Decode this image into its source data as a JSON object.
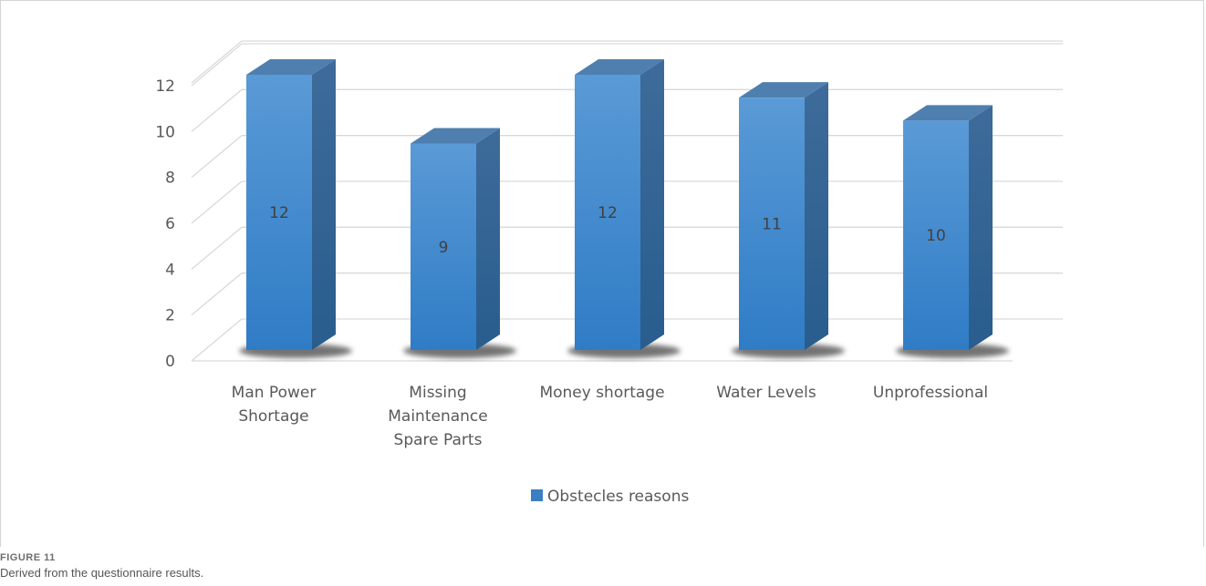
{
  "chart_data": {
    "type": "bar",
    "style": "3d-column",
    "categories": [
      [
        "Man Power",
        "Shortage"
      ],
      [
        "Missing",
        "Maintenance",
        "Spare Parts"
      ],
      [
        "Money shortage"
      ],
      [
        "Water Levels"
      ],
      [
        "Unprofessional"
      ]
    ],
    "series": [
      {
        "name": "Obstecles reasons",
        "values": [
          12,
          9,
          12,
          11,
          10
        ],
        "color": "#3a7fc4"
      }
    ],
    "data_labels": [
      "12",
      "9",
      "12",
      "11",
      "10"
    ],
    "ylim": [
      0,
      12
    ],
    "y_ticks": [
      0,
      2,
      4,
      6,
      8,
      10,
      12
    ],
    "grid": true,
    "legend_position": "bottom",
    "title": "",
    "xlabel": "",
    "ylabel": ""
  },
  "figure": {
    "label": "FIGURE 11",
    "caption": "Derived from the questionnaire results."
  }
}
